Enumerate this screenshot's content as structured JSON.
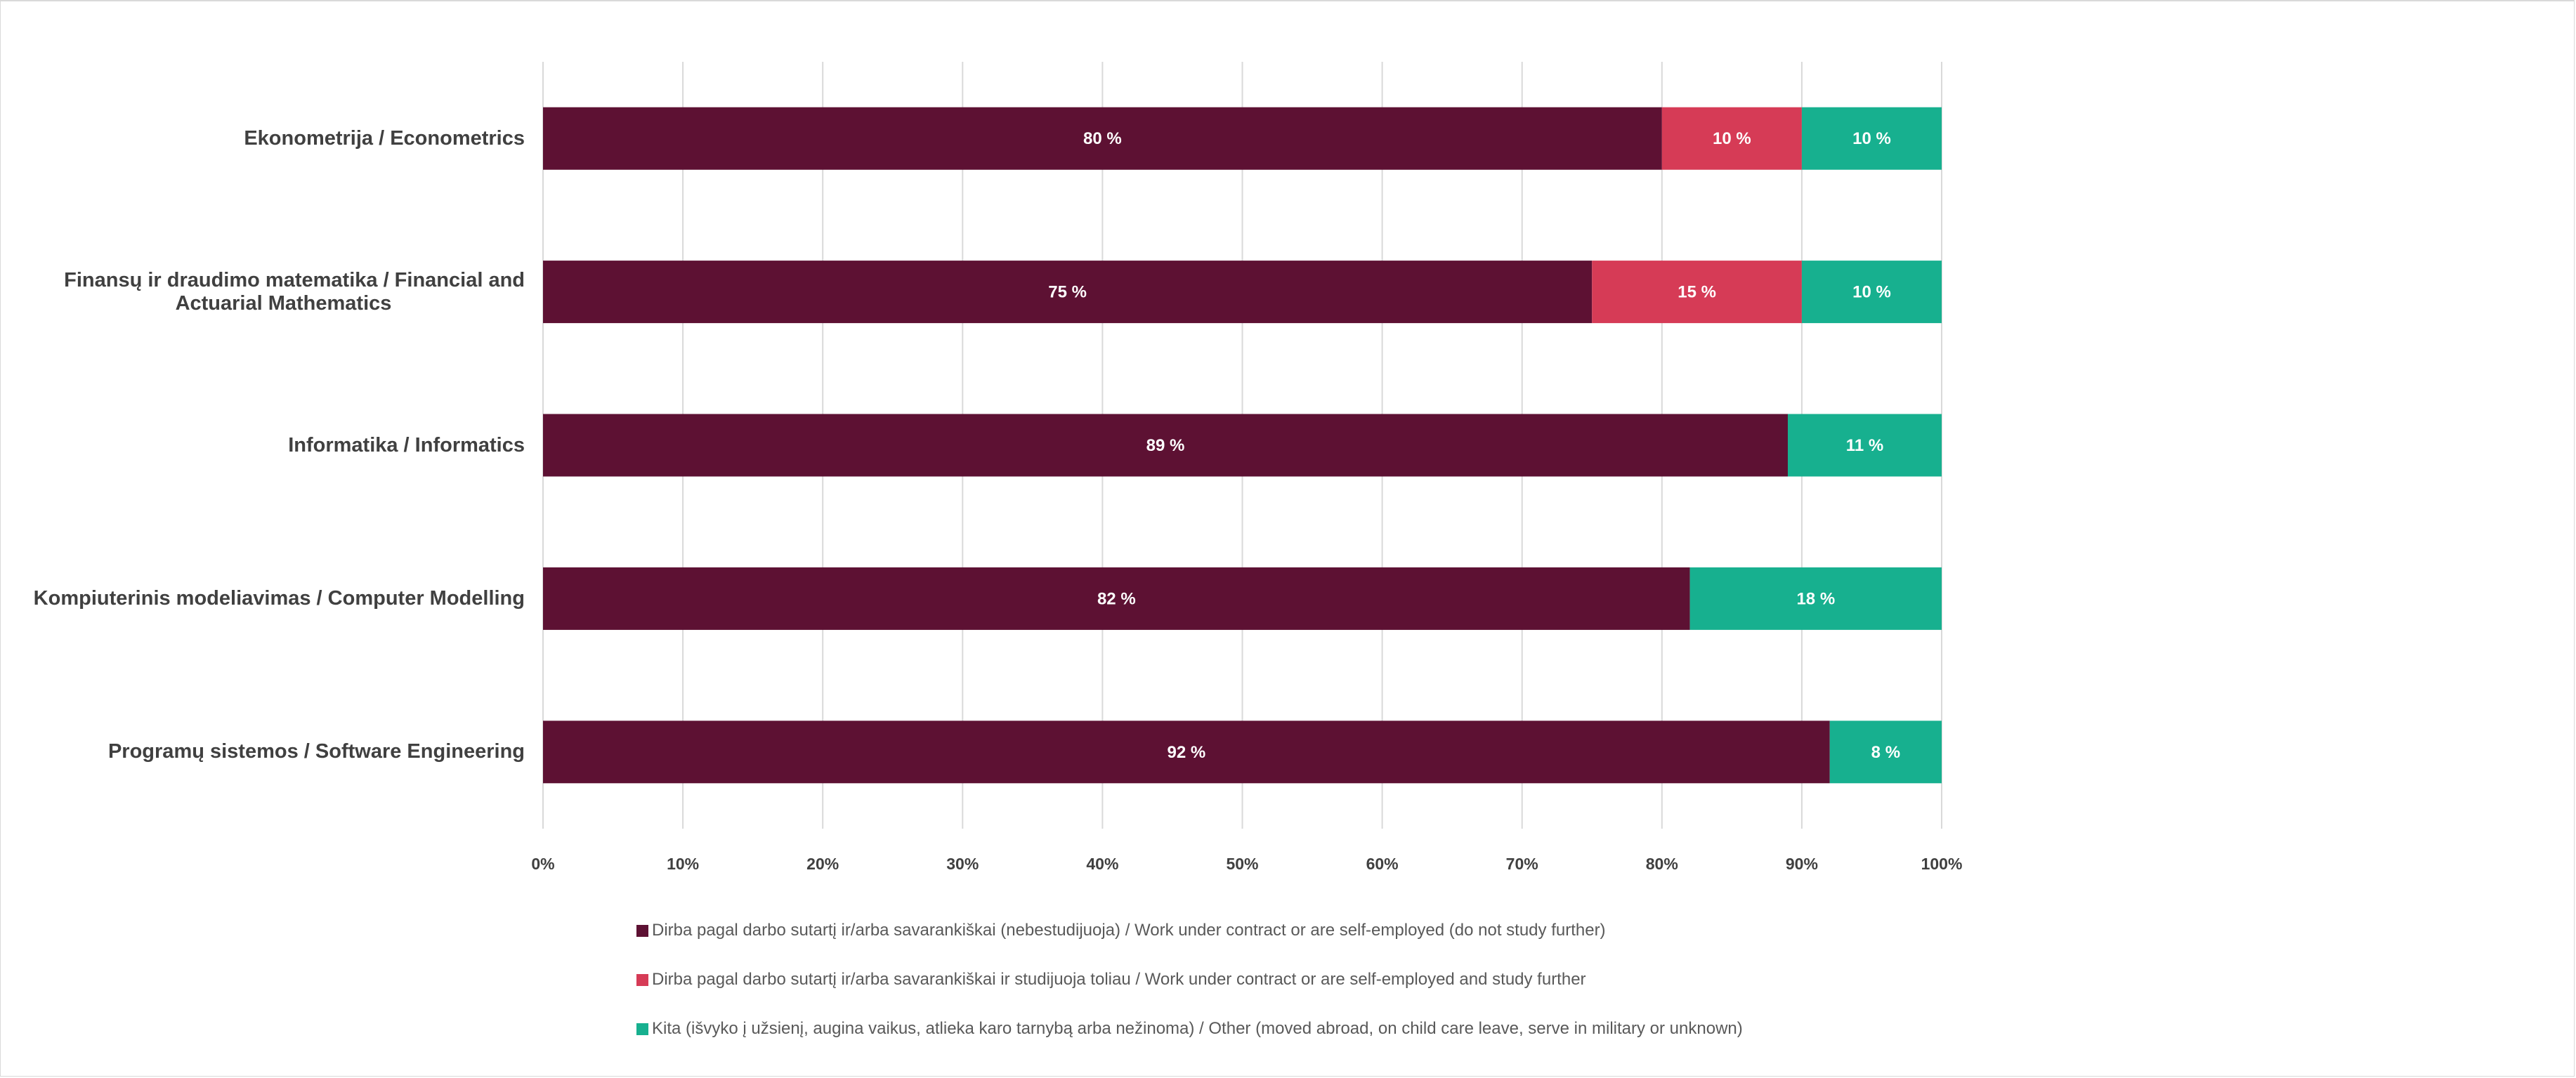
{
  "chart_data": {
    "type": "bar",
    "orientation": "horizontal",
    "stacked": true,
    "categories": [
      "Ekonometrija / Econometrics",
      "Finansų ir draudimo matematika / Financial and Actuarial Mathematics",
      "Informatika / Informatics",
      "Kompiuterinis modeliavimas / Computer Modelling",
      "Programų sistemos / Software Engineering"
    ],
    "category_lines": [
      [
        "Ekonometrija / Econometrics"
      ],
      [
        "Finansų ir draudimo matematika / Financial and",
        "Actuarial Mathematics"
      ],
      [
        "Informatika / Informatics"
      ],
      [
        "Kompiuterinis modeliavimas / Computer Modelling"
      ],
      [
        "Programų sistemos / Software Engineering"
      ]
    ],
    "series": [
      {
        "name": "Dirba pagal darbo sutartį ir/arba savarankiškai (nebestudijuoja) / Work under contract or are self-employed (do not study further)",
        "color": "#5d1133",
        "values": [
          80,
          75,
          89,
          82,
          92
        ]
      },
      {
        "name": "Dirba pagal darbo sutartį ir/arba savarankiškai  ir studijuoja toliau / Work under contract or are self-employed and study further",
        "color": "#d63b56",
        "values": [
          10,
          15,
          0,
          0,
          0
        ]
      },
      {
        "name": "Kita (išvyko į užsienį, augina vaikus, atlieka karo tarnybą arba nežinoma) / Other (moved abroad, on child care leave, serve in military or unknown)",
        "color": "#17b08f",
        "values": [
          10,
          10,
          11,
          18,
          8
        ]
      }
    ],
    "value_label_suffix": " %",
    "xlim": [
      0,
      100
    ],
    "x_ticks": [
      "0%",
      "10%",
      "20%",
      "30%",
      "40%",
      "50%",
      "60%",
      "70%",
      "80%",
      "90%",
      "100%"
    ],
    "grid": true,
    "legend_position": "bottom",
    "title": "",
    "xlabel": "",
    "ylabel": ""
  }
}
